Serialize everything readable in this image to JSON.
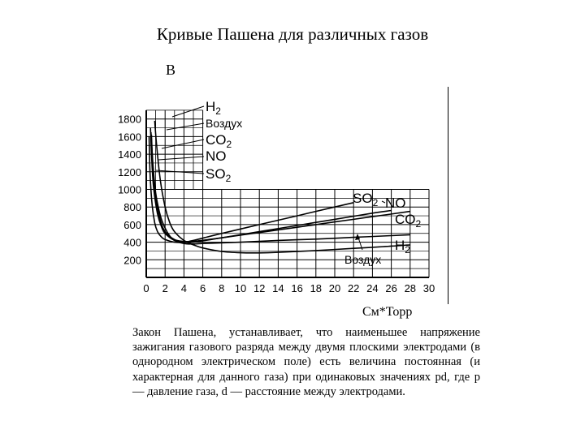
{
  "slide": {
    "title": "Кривые Пашена для различных газов",
    "y_unit": "В",
    "x_unit": "См*Торр",
    "description": "Закон Пашена, устанавливает, что наименьшее напряжение зажигания газового разряда между двумя плоскими электродами (в однородном электрическом поле) есть величина постоянная (и характерная для данного газа) при одинаковых значениях pd, где р — давление газа, d — расстояние между электродами."
  },
  "chart_data": {
    "type": "line",
    "title": "",
    "xlabel": "См*Торр",
    "ylabel": "В",
    "xlim": [
      0,
      30
    ],
    "ylim": [
      0,
      1900
    ],
    "xticks": [
      0,
      2,
      4,
      6,
      8,
      10,
      12,
      14,
      16,
      18,
      20,
      22,
      24,
      26,
      28,
      30
    ],
    "yticks": [
      200,
      400,
      600,
      800,
      1000,
      1200,
      1400,
      1600,
      1800
    ],
    "grid": true,
    "legend_left": [
      "H2",
      "Воздух",
      "CO2",
      "NO",
      "SO2"
    ],
    "legend_right": [
      "SO2",
      "NO",
      "CO2",
      "H2",
      "Воздух"
    ],
    "series": [
      {
        "name": "H2",
        "x": [
          0.9,
          1.1,
          1.5,
          2.0,
          2.5,
          3.0,
          4.0,
          5.0,
          6.0,
          8.0,
          10.0,
          12.0,
          14.0,
          18.0,
          22.0,
          26.0,
          28.0
        ],
        "y": [
          1780,
          1500,
          1100,
          800,
          620,
          520,
          420,
          370,
          335,
          295,
          280,
          278,
          285,
          305,
          330,
          355,
          370
        ]
      },
      {
        "name": "Воздух",
        "x": [
          0.5,
          0.7,
          1.0,
          1.5,
          2.0,
          2.5,
          3.0,
          4.0,
          5.0,
          6.0,
          10.0,
          14.0,
          18.0,
          22.0,
          26.0,
          28.0
        ],
        "y": [
          1650,
          1300,
          960,
          700,
          560,
          470,
          420,
          385,
          380,
          385,
          400,
          420,
          435,
          455,
          475,
          485
        ]
      },
      {
        "name": "CO2",
        "x": [
          0.55,
          0.7,
          1.0,
          1.5,
          2.0,
          3.0,
          4.0,
          5.0,
          8.0,
          12.0,
          16.0,
          20.0,
          24.0,
          28.0
        ],
        "y": [
          1620,
          1250,
          900,
          650,
          520,
          430,
          410,
          410,
          450,
          510,
          570,
          630,
          690,
          750
        ]
      },
      {
        "name": "NO",
        "x": [
          0.45,
          0.6,
          0.8,
          1.2,
          1.6,
          2.0,
          3.0,
          4.0,
          5.0,
          8.0,
          12.0,
          16.0,
          20.0,
          24.0,
          26.0
        ],
        "y": [
          1700,
          1300,
          1000,
          720,
          580,
          500,
          420,
          400,
          400,
          450,
          520,
          590,
          660,
          730,
          760
        ]
      },
      {
        "name": "SO2",
        "x": [
          0.3,
          0.4,
          0.6,
          0.9,
          1.2,
          1.6,
          2.0,
          3.0,
          4.0,
          5.0,
          8.0,
          12.0,
          16.0,
          20.0,
          22.0
        ],
        "y": [
          1600,
          1200,
          850,
          620,
          520,
          460,
          430,
          400,
          400,
          420,
          500,
          600,
          700,
          800,
          850
        ]
      }
    ]
  }
}
